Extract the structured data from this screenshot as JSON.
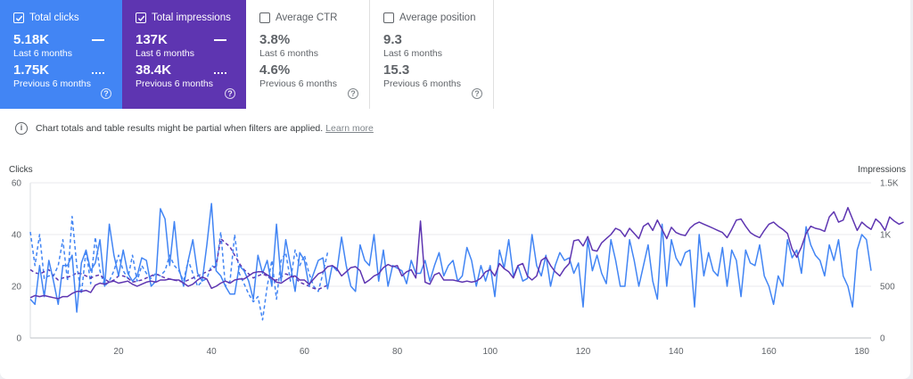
{
  "cards": [
    {
      "label": "Total clicks",
      "checked": true,
      "value": "5.18K",
      "period": "Last 6 months",
      "prev_value": "1.75K",
      "prev_period": "Previous 6 months"
    },
    {
      "label": "Total impressions",
      "checked": true,
      "value": "137K",
      "period": "Last 6 months",
      "prev_value": "38.4K",
      "prev_period": "Previous 6 months"
    },
    {
      "label": "Average CTR",
      "checked": false,
      "value": "3.8%",
      "period": "Last 6 months",
      "prev_value": "4.6%",
      "prev_period": "Previous 6 months"
    },
    {
      "label": "Average position",
      "checked": false,
      "value": "9.3",
      "period": "Last 6 months",
      "prev_value": "15.3",
      "prev_period": "Previous 6 months"
    }
  ],
  "help_glyph": "?",
  "notice": {
    "text": "Chart totals and table results might be partial when filters are applied.",
    "link": "Learn more"
  },
  "colors": {
    "clicks": "#4285f4",
    "impressions": "#5e35b1",
    "grid": "#e8eaed"
  },
  "chart_data": {
    "type": "line",
    "y_left_label": "Clicks",
    "y_right_label": "Impressions",
    "y_left_ticks": [
      "0",
      "20",
      "40",
      "60"
    ],
    "y_right_ticks": [
      "0",
      "500",
      "1K",
      "1.5K"
    ],
    "ylim_left": [
      0,
      60
    ],
    "ylim_right": [
      0,
      1500
    ],
    "x_ticks": [
      "20",
      "40",
      "60",
      "80",
      "100",
      "120",
      "140",
      "160",
      "180"
    ],
    "xlim": [
      1,
      182
    ],
    "grid": true,
    "series": [
      {
        "name": "Total clicks",
        "style": "solid",
        "axis": "left",
        "values": [
          15,
          13,
          28,
          16,
          30,
          22,
          13,
          28,
          28,
          32,
          10,
          29,
          34,
          26,
          29,
          38,
          20,
          44,
          32,
          24,
          34,
          25,
          22,
          24,
          31,
          30,
          20,
          22,
          50,
          46,
          28,
          45,
          27,
          20,
          30,
          38,
          25,
          22,
          36,
          52,
          26,
          24,
          20,
          17,
          17,
          28,
          26,
          22,
          15,
          32,
          25,
          30,
          20,
          44,
          22,
          38,
          28,
          18,
          33,
          30,
          20,
          25,
          30,
          31,
          19,
          28,
          26,
          39,
          28,
          20,
          18,
          36,
          30,
          28,
          40,
          22,
          34,
          20,
          28,
          27,
          26,
          21,
          30,
          25,
          25,
          30,
          22,
          28,
          33,
          24,
          28,
          30,
          22,
          24,
          35,
          30,
          20,
          28,
          22,
          28,
          16,
          34,
          27,
          38,
          24,
          28,
          22,
          23,
          40,
          28,
          24,
          32,
          20,
          28,
          33,
          30,
          31,
          25,
          29,
          12,
          38,
          26,
          32,
          25,
          21,
          38,
          30,
          20,
          20,
          38,
          30,
          20,
          28,
          36,
          22,
          15,
          44,
          20,
          38,
          31,
          28,
          33,
          34,
          12,
          40,
          24,
          33,
          26,
          24,
          35,
          20,
          34,
          30,
          16,
          34,
          29,
          28,
          36,
          24,
          20,
          13,
          24,
          20,
          38,
          31,
          34,
          25,
          43,
          36,
          32,
          30,
          24,
          36,
          30,
          38,
          24,
          20,
          12,
          34,
          40,
          38,
          26
        ]
      },
      {
        "name": "Total impressions",
        "style": "solid",
        "axis": "right",
        "values": [
          390,
          410,
          400,
          410,
          400,
          390,
          380,
          400,
          400,
          430,
          450,
          450,
          460,
          440,
          510,
          530,
          520,
          540,
          550,
          530,
          540,
          550,
          520,
          500,
          520,
          540,
          550,
          540,
          560,
          560,
          570,
          560,
          560,
          530,
          500,
          520,
          560,
          590,
          570,
          480,
          500,
          530,
          550,
          530,
          560,
          570,
          570,
          600,
          630,
          640,
          640,
          610,
          580,
          540,
          530,
          560,
          590,
          600,
          560,
          560,
          520,
          570,
          620,
          640,
          690,
          700,
          670,
          600,
          640,
          680,
          690,
          650,
          530,
          560,
          600,
          620,
          680,
          710,
          690,
          700,
          600,
          640,
          660,
          580,
          1130,
          540,
          520,
          610,
          630,
          560,
          560,
          560,
          550,
          540,
          550,
          540,
          550,
          580,
          640,
          660,
          600,
          720,
          670,
          640,
          580,
          700,
          720,
          600,
          560,
          600,
          750,
          780,
          700,
          640,
          600,
          670,
          720,
          940,
          950,
          890,
          980,
          850,
          840,
          920,
          960,
          1000,
          1060,
          1040,
          980,
          1060,
          1010,
          960,
          1080,
          1110,
          1040,
          1140,
          1050,
          960,
          1070,
          1020,
          1000,
          990,
          1060,
          1100,
          1120,
          1100,
          1080,
          1060,
          1040,
          1020,
          970,
          1050,
          1140,
          1150,
          1080,
          1020,
          990,
          970,
          1040,
          1100,
          1120,
          1080,
          1050,
          1010,
          860,
          780,
          880,
          1010,
          1080,
          1060,
          1050,
          1030,
          1170,
          1220,
          1120,
          1140,
          1260,
          1150,
          1040,
          1120,
          1080,
          1050,
          1150,
          1110,
          1040,
          1170,
          1130,
          1100,
          1120
        ]
      },
      {
        "name": "Previous clicks",
        "style": "dashed",
        "axis": "left",
        "values": [
          41,
          28,
          40,
          23,
          24,
          24,
          28,
          38,
          22,
          47,
          28,
          17,
          34,
          21,
          39,
          26,
          20,
          22,
          26,
          32,
          26,
          23,
          32,
          22,
          28,
          25,
          23,
          25,
          24,
          26,
          32,
          28,
          26,
          22,
          30,
          25,
          20,
          22,
          23,
          28,
          27,
          41,
          20,
          22,
          40,
          25,
          21,
          17,
          14,
          16,
          7,
          20,
          30,
          15,
          30,
          33,
          22,
          34,
          28,
          32,
          25,
          20,
          18,
          25,
          33
        ]
      },
      {
        "name": "Previous impressions",
        "style": "dashed",
        "axis": "right",
        "values": [
          660,
          630,
          620,
          640,
          660,
          600,
          560,
          580,
          590,
          600,
          630,
          620,
          600,
          580,
          600,
          610,
          570,
          540,
          560,
          600,
          600,
          580,
          540,
          550,
          560,
          580,
          600,
          620,
          600,
          580,
          570,
          560,
          550,
          540,
          560,
          580,
          600,
          620,
          640,
          660,
          700,
          960,
          920,
          880,
          800,
          720,
          660,
          620,
          580,
          600,
          620,
          600,
          560,
          560,
          590,
          620,
          600,
          580,
          540,
          520,
          500,
          480,
          470,
          490,
          510
        ]
      }
    ]
  }
}
